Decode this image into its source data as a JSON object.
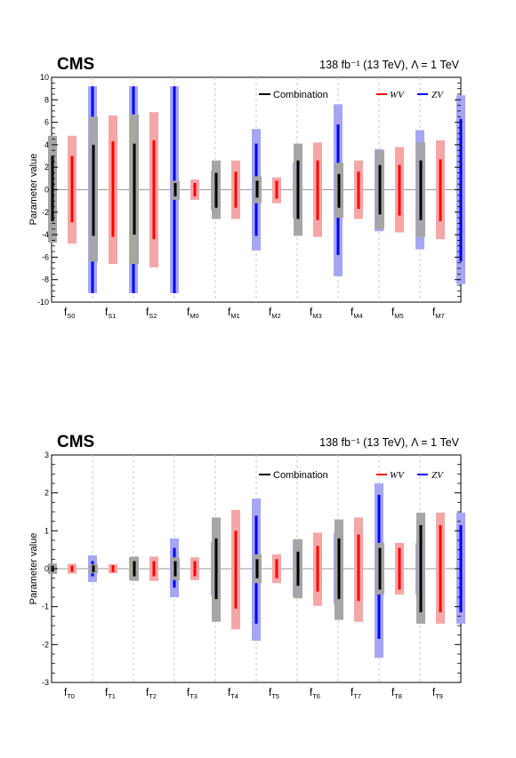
{
  "colors": {
    "combination": "#000000",
    "combination_band": "#a6a6a6",
    "wv": "#ff0000",
    "wv_band": "#f5a6a6",
    "zv": "#0000ff",
    "zv_band": "#a6a6f2",
    "zero_line": "#999999",
    "separator": "#c8c8c8"
  },
  "chart_data": [
    {
      "type": "interval",
      "brand": "CMS",
      "lumi_text": "138 fb⁻¹ (13 TeV), Λ = 1 TeV",
      "ylabel": "Parameter value",
      "ylim": [
        -10,
        10
      ],
      "yticks": [
        -10,
        -8,
        -6,
        -4,
        -2,
        0,
        2,
        4,
        6,
        8,
        10
      ],
      "legend": [
        "Combination",
        "WV",
        "ZV"
      ],
      "categories": [
        {
          "name": "f",
          "sub": "S0"
        },
        {
          "name": "f",
          "sub": "S1"
        },
        {
          "name": "f",
          "sub": "S2"
        },
        {
          "name": "f",
          "sub": "M0"
        },
        {
          "name": "f",
          "sub": "M1"
        },
        {
          "name": "f",
          "sub": "M2"
        },
        {
          "name": "f",
          "sub": "M3"
        },
        {
          "name": "f",
          "sub": "M4"
        },
        {
          "name": "f",
          "sub": "M5"
        },
        {
          "name": "f",
          "sub": "M7"
        }
      ],
      "series": [
        {
          "name": "Combination",
          "interval_68": [
            [
              -2.8,
              3.0
            ],
            [
              -4.1,
              4.0
            ],
            [
              -4.0,
              4.1
            ],
            [
              -0.6,
              0.6
            ],
            [
              -1.6,
              1.5
            ],
            [
              -0.7,
              0.8
            ],
            [
              -2.6,
              2.6
            ],
            [
              -1.6,
              1.4
            ],
            [
              -2.2,
              2.2
            ],
            [
              -2.7,
              2.6
            ]
          ],
          "interval_95": [
            [
              -4.7,
              4.8
            ],
            [
              -6.4,
              6.5
            ],
            [
              -6.6,
              6.7
            ],
            [
              -0.9,
              0.8
            ],
            [
              -2.6,
              2.6
            ],
            [
              -1.2,
              1.2
            ],
            [
              -4.1,
              4.1
            ],
            [
              -2.5,
              2.4
            ],
            [
              -3.5,
              3.5
            ],
            [
              -4.2,
              4.2
            ]
          ]
        },
        {
          "name": "WV",
          "interval_68": [
            [
              -2.9,
              3.0
            ],
            [
              -4.2,
              4.3
            ],
            [
              -4.4,
              4.4
            ],
            [
              -0.6,
              0.6
            ],
            [
              -1.6,
              1.6
            ],
            [
              -0.8,
              0.8
            ],
            [
              -2.7,
              2.6
            ],
            [
              -1.7,
              1.6
            ],
            [
              -2.3,
              2.2
            ],
            [
              -2.8,
              2.7
            ]
          ],
          "interval_95": [
            [
              -4.8,
              4.8
            ],
            [
              -6.6,
              6.6
            ],
            [
              -6.9,
              6.9
            ],
            [
              -0.9,
              0.9
            ],
            [
              -2.6,
              2.6
            ],
            [
              -1.2,
              1.1
            ],
            [
              -4.2,
              4.2
            ],
            [
              -2.6,
              2.6
            ],
            [
              -3.8,
              3.8
            ],
            [
              -4.4,
              4.4
            ]
          ]
        },
        {
          "name": "ZV",
          "interval_68": [
            [
              -9.2,
              9.2
            ],
            [
              -9.2,
              9.2
            ],
            [
              -9.2,
              9.2
            ],
            [
              -1.1,
              1.1
            ],
            [
              -4.1,
              4.1
            ],
            [
              -1.6,
              1.7
            ],
            [
              -5.8,
              5.8
            ],
            [
              -2.7,
              2.8
            ],
            [
              -3.7,
              3.7
            ],
            [
              -6.4,
              6.3
            ]
          ],
          "interval_95": [
            [
              -9.2,
              9.2
            ],
            [
              -9.2,
              9.2
            ],
            [
              -9.2,
              9.2
            ],
            [
              -1.8,
              1.7
            ],
            [
              -5.4,
              5.4
            ],
            [
              -2.5,
              2.4
            ],
            [
              -7.7,
              7.6
            ],
            [
              -3.7,
              3.6
            ],
            [
              -5.3,
              5.3
            ],
            [
              -8.4,
              8.4
            ]
          ]
        }
      ]
    },
    {
      "type": "interval",
      "brand": "CMS",
      "lumi_text": "138 fb⁻¹ (13 TeV), Λ = 1 TeV",
      "ylabel": "Parameter value",
      "ylim": [
        -3,
        3
      ],
      "yticks": [
        -3,
        -2,
        -1,
        0,
        1,
        2,
        3
      ],
      "legend": [
        "Combination",
        "WV",
        "ZV"
      ],
      "categories": [
        {
          "name": "f",
          "sub": "T0"
        },
        {
          "name": "f",
          "sub": "T1"
        },
        {
          "name": "f",
          "sub": "T2"
        },
        {
          "name": "f",
          "sub": "T3"
        },
        {
          "name": "f",
          "sub": "T4"
        },
        {
          "name": "f",
          "sub": "T5"
        },
        {
          "name": "f",
          "sub": "T6"
        },
        {
          "name": "f",
          "sub": "T7"
        },
        {
          "name": "f",
          "sub": "T8"
        },
        {
          "name": "f",
          "sub": "T9"
        }
      ],
      "series": [
        {
          "name": "Combination",
          "interval_68": [
            [
              -0.08,
              0.08
            ],
            [
              -0.09,
              0.09
            ],
            [
              -0.2,
              0.2
            ],
            [
              -0.2,
              0.2
            ],
            [
              -0.8,
              0.8
            ],
            [
              -0.25,
              0.25
            ],
            [
              -0.45,
              0.45
            ],
            [
              -0.8,
              0.8
            ],
            [
              -0.55,
              0.55
            ],
            [
              -1.15,
              1.15
            ]
          ],
          "interval_95": [
            [
              -0.14,
              0.14
            ],
            [
              -0.12,
              0.12
            ],
            [
              -0.32,
              0.32
            ],
            [
              -0.3,
              0.3
            ],
            [
              -1.4,
              1.35
            ],
            [
              -0.38,
              0.38
            ],
            [
              -0.78,
              0.78
            ],
            [
              -1.35,
              1.3
            ],
            [
              -0.68,
              0.68
            ],
            [
              -1.45,
              1.48
            ]
          ]
        },
        {
          "name": "WV",
          "interval_68": [
            [
              -0.08,
              0.08
            ],
            [
              -0.09,
              0.09
            ],
            [
              -0.2,
              0.2
            ],
            [
              -0.2,
              0.2
            ],
            [
              -1.05,
              1.0
            ],
            [
              -0.25,
              0.25
            ],
            [
              -0.6,
              0.6
            ],
            [
              -0.85,
              0.9
            ],
            [
              -0.55,
              0.55
            ],
            [
              -1.15,
              1.15
            ]
          ],
          "interval_95": [
            [
              -0.13,
              0.13
            ],
            [
              -0.12,
              0.12
            ],
            [
              -0.32,
              0.32
            ],
            [
              -0.3,
              0.3
            ],
            [
              -1.6,
              1.55
            ],
            [
              -0.38,
              0.38
            ],
            [
              -0.98,
              0.95
            ],
            [
              -1.4,
              1.35
            ],
            [
              -0.68,
              0.68
            ],
            [
              -1.45,
              1.48
            ]
          ]
        },
        {
          "name": "ZV",
          "interval_68": [
            [
              -0.2,
              0.2
            ],
            [
              -0.18,
              0.18
            ],
            [
              -0.5,
              0.55
            ],
            [
              -0.45,
              0.5
            ],
            [
              -1.45,
              1.4
            ],
            [
              -0.55,
              0.55
            ],
            [
              -0.65,
              0.65
            ],
            [
              -1.85,
              1.95
            ],
            [
              -0.55,
              0.55
            ],
            [
              -1.15,
              1.15
            ]
          ],
          "interval_95": [
            [
              -0.35,
              0.35
            ],
            [
              -0.3,
              0.3
            ],
            [
              -0.75,
              0.8
            ],
            [
              -0.7,
              0.7
            ],
            [
              -1.9,
              1.85
            ],
            [
              -0.75,
              0.75
            ],
            [
              -0.95,
              0.95
            ],
            [
              -2.35,
              2.25
            ],
            [
              -0.68,
              0.68
            ],
            [
              -1.45,
              1.48
            ]
          ]
        }
      ]
    }
  ]
}
